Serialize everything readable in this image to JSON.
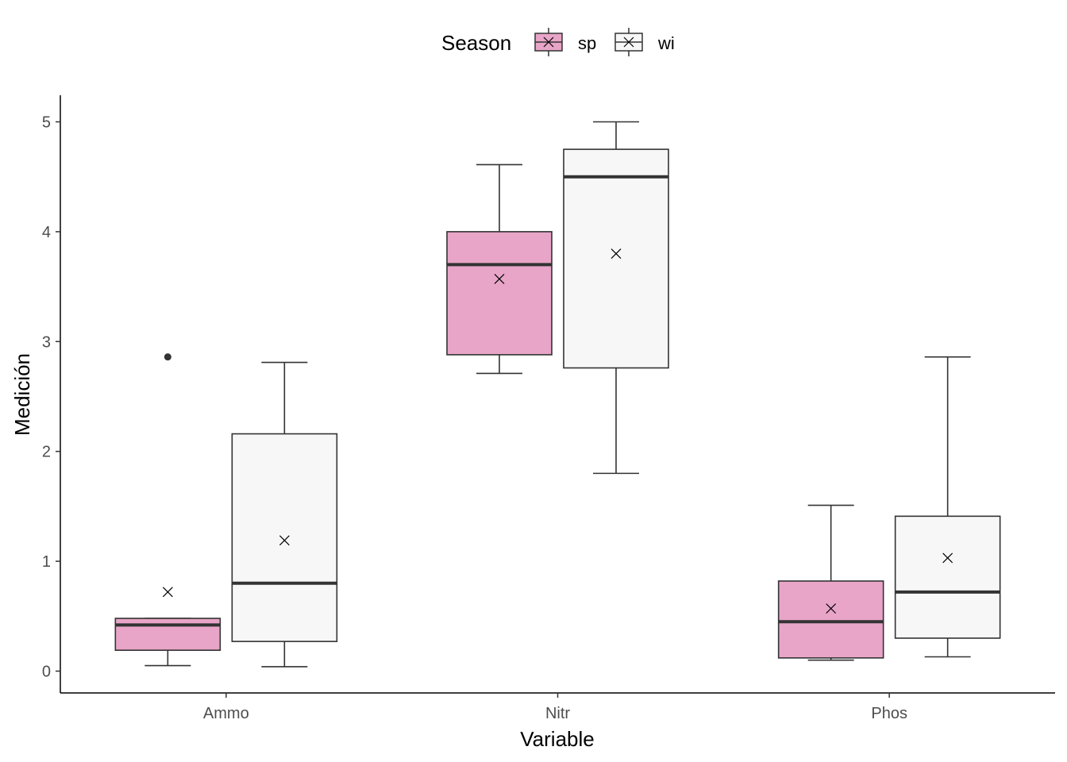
{
  "chart_data": {
    "type": "boxplot",
    "xlabel": "Variable",
    "ylabel": "Medición",
    "ylim": [
      -0.2,
      5.25
    ],
    "yticks": [
      0,
      1,
      2,
      3,
      4,
      5
    ],
    "categories": [
      "Ammo",
      "Nitr",
      "Phos"
    ],
    "legend": {
      "title": "Season",
      "position": "top"
    },
    "grid": false,
    "series": [
      {
        "name": "sp",
        "color": "#e8a5c8",
        "boxes": [
          {
            "category": "Ammo",
            "lower_whisker": 0.05,
            "q1": 0.19,
            "median": 0.42,
            "q3": 0.48,
            "upper_whisker": 0.48,
            "mean": 0.72,
            "outliers": [
              2.86
            ]
          },
          {
            "category": "Nitr",
            "lower_whisker": 2.71,
            "q1": 2.88,
            "median": 3.7,
            "q3": 4.0,
            "upper_whisker": 4.61,
            "mean": 3.57,
            "outliers": []
          },
          {
            "category": "Phos",
            "lower_whisker": 0.1,
            "q1": 0.12,
            "median": 0.45,
            "q3": 0.82,
            "upper_whisker": 1.51,
            "mean": 0.57,
            "outliers": []
          }
        ]
      },
      {
        "name": "wi",
        "color": "#f7f7f7",
        "boxes": [
          {
            "category": "Ammo",
            "lower_whisker": 0.04,
            "q1": 0.27,
            "median": 0.8,
            "q3": 2.16,
            "upper_whisker": 2.81,
            "mean": 1.19,
            "outliers": []
          },
          {
            "category": "Nitr",
            "lower_whisker": 1.8,
            "q1": 2.76,
            "median": 4.5,
            "q3": 4.75,
            "upper_whisker": 5.0,
            "mean": 3.8,
            "outliers": []
          },
          {
            "category": "Phos",
            "lower_whisker": 0.13,
            "q1": 0.3,
            "median": 0.72,
            "q3": 1.41,
            "upper_whisker": 2.86,
            "mean": 1.03,
            "outliers": []
          }
        ]
      }
    ]
  }
}
